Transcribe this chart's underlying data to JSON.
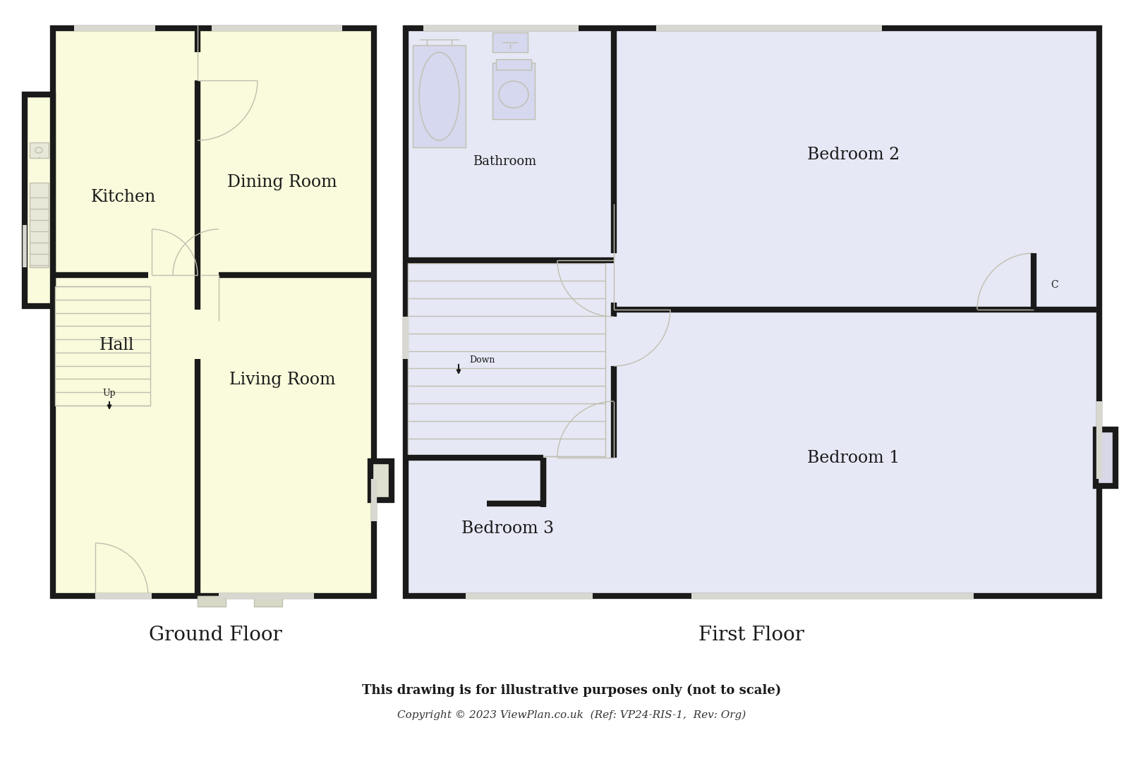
{
  "bg_color": "#ffffff",
  "ground_fill": "#fafadc",
  "first_fill": "#e6e8f5",
  "wall_color": "#1a1a1a",
  "door_color": "#c0bfb0",
  "wall_lw": 6,
  "thin_lw": 1.0,
  "footer_bold": "This drawing is for illustrative purposes only (not to scale)",
  "footer_italic": "Copyright © 2023 ViewPlan.co.uk  (Ref: VP24-RIS-1,  Rev: Org)",
  "ground_label": "Ground Floor",
  "first_label": "First Floor"
}
